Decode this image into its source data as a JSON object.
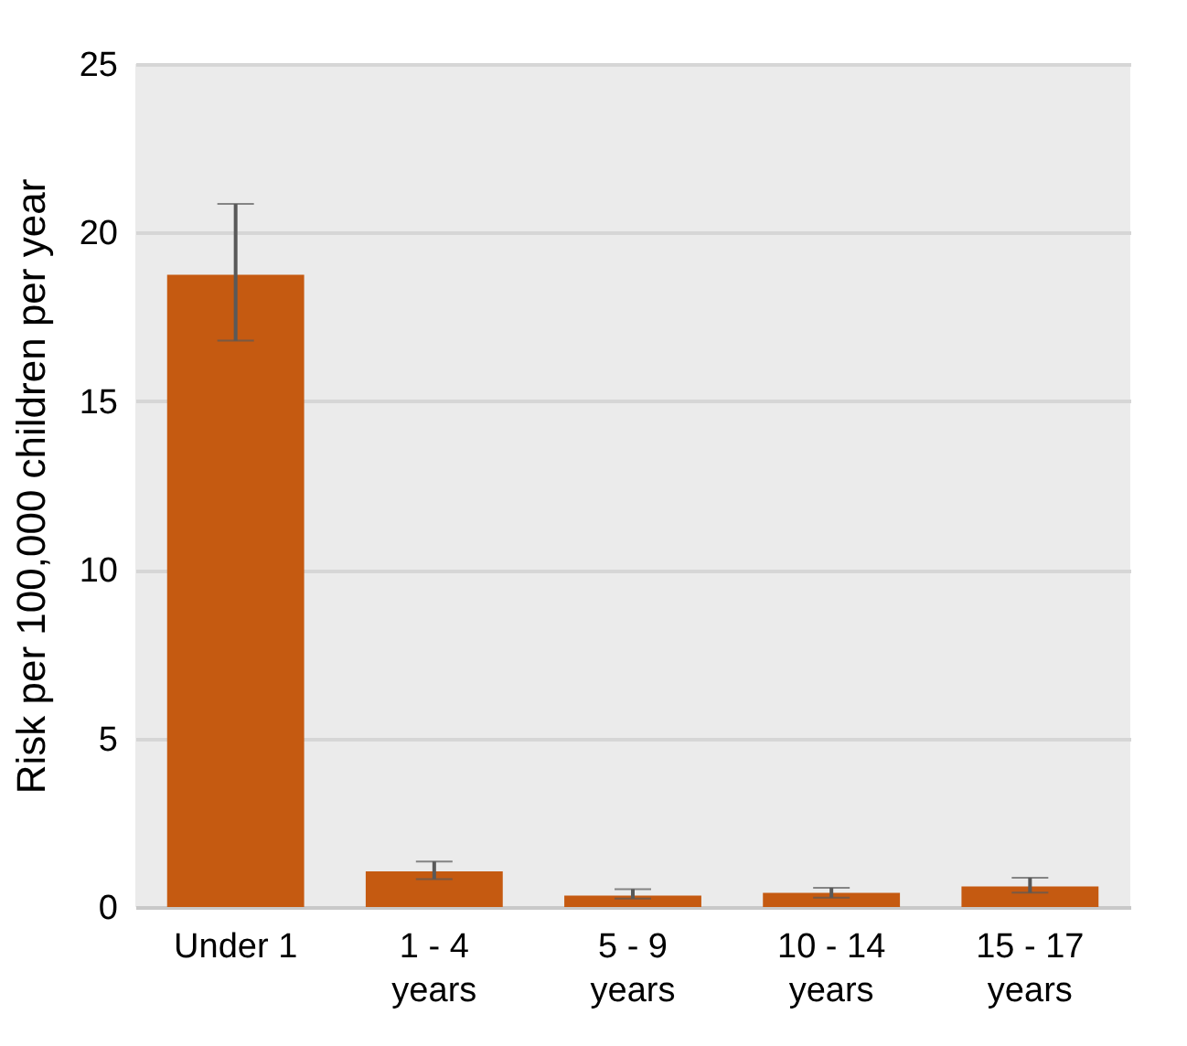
{
  "chart_data": {
    "type": "bar",
    "ylabel": "Risk per 100,000 children per year",
    "categories": [
      "Under 1",
      "1 - 4 years",
      "5 - 9 years",
      "10 - 14 years",
      "15 - 17 years"
    ],
    "values": [
      18.75,
      1.06,
      0.34,
      0.42,
      0.61
    ],
    "errors": [
      [
        16.8,
        20.85
      ],
      [
        0.83,
        1.35
      ],
      [
        0.25,
        0.53
      ],
      [
        0.28,
        0.57
      ],
      [
        0.43,
        0.87
      ]
    ],
    "color": "#c55a11",
    "ylim": [
      0,
      25
    ],
    "yticks": [
      0,
      5,
      10,
      15,
      20,
      25
    ],
    "grid": "y"
  }
}
